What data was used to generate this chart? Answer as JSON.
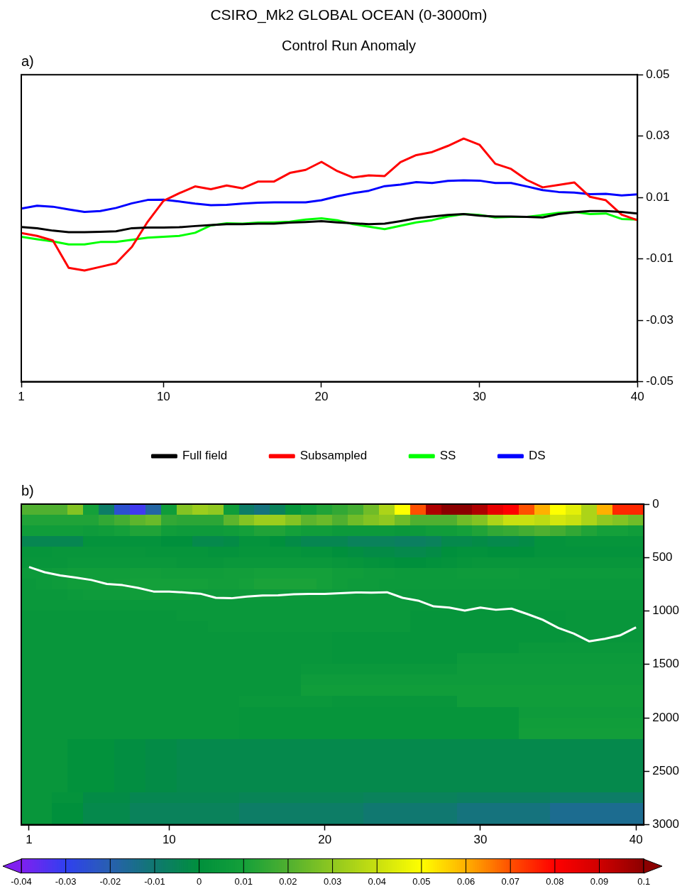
{
  "chart_data": [
    {
      "type": "line",
      "title": "CSIRO_Mk2 GLOBAL OCEAN (0-3000m)",
      "subtitle": "Control Run Anomaly",
      "annotations": [
        "a)"
      ],
      "x": [
        1,
        2,
        3,
        4,
        5,
        6,
        7,
        8,
        9,
        10,
        11,
        12,
        13,
        14,
        15,
        16,
        17,
        18,
        19,
        20,
        21,
        22,
        23,
        24,
        25,
        26,
        27,
        28,
        29,
        30,
        31,
        32,
        33,
        34,
        35,
        36,
        37,
        38,
        39,
        40
      ],
      "xlim": [
        1,
        40
      ],
      "xticks": [
        1,
        10,
        20,
        30,
        40
      ],
      "ylim": [
        -0.05,
        0.05
      ],
      "yticks": [
        -0.05,
        -0.03,
        -0.01,
        0.01,
        0.03,
        0.05
      ],
      "legend": "bottom",
      "series": [
        {
          "name": "Full field",
          "color": "#000000",
          "values": [
            0.0004,
            0.0,
            -0.0008,
            -0.0013,
            -0.0013,
            -0.0012,
            -0.001,
            0.0,
            0.0002,
            0.0002,
            0.0003,
            0.0007,
            0.001,
            0.0013,
            0.0013,
            0.0015,
            0.0015,
            0.0018,
            0.002,
            0.0023,
            0.0019,
            0.0016,
            0.0013,
            0.0015,
            0.0023,
            0.0032,
            0.0038,
            0.0043,
            0.0046,
            0.0041,
            0.0038,
            0.0038,
            0.0037,
            0.0035,
            0.0046,
            0.0052,
            0.0056,
            0.0056,
            0.0053,
            0.0048
          ]
        },
        {
          "name": "Subsampled",
          "color": "#ff0000",
          "values": [
            -0.0016,
            -0.0025,
            -0.004,
            -0.0129,
            -0.0138,
            -0.0126,
            -0.0114,
            -0.0061,
            0.0021,
            0.0089,
            0.0114,
            0.0136,
            0.0127,
            0.0139,
            0.013,
            0.0152,
            0.0152,
            0.018,
            0.019,
            0.0216,
            0.0186,
            0.0165,
            0.0172,
            0.017,
            0.0215,
            0.0238,
            0.0248,
            0.0268,
            0.0292,
            0.0272,
            0.021,
            0.0193,
            0.0157,
            0.0133,
            0.0141,
            0.0149,
            0.0102,
            0.0091,
            0.0044,
            0.0026
          ]
        },
        {
          "name": "SS",
          "color": "#00ff00",
          "values": [
            -0.0028,
            -0.0036,
            -0.0043,
            -0.0053,
            -0.0053,
            -0.0045,
            -0.0045,
            -0.0038,
            -0.0031,
            -0.0028,
            -0.0025,
            -0.0015,
            0.0009,
            0.0016,
            0.0015,
            0.0018,
            0.0019,
            0.0021,
            0.0028,
            0.0032,
            0.0026,
            0.0013,
            0.0005,
            -0.0003,
            0.0008,
            0.0019,
            0.0026,
            0.0038,
            0.0046,
            0.0043,
            0.0035,
            0.0037,
            0.0037,
            0.0043,
            0.005,
            0.0053,
            0.0046,
            0.0048,
            0.003,
            0.0028
          ]
        },
        {
          "name": "DS",
          "color": "#0000ff",
          "values": [
            0.0064,
            0.0073,
            0.007,
            0.0061,
            0.0053,
            0.0056,
            0.0066,
            0.0081,
            0.0092,
            0.0093,
            0.0087,
            0.008,
            0.0075,
            0.0076,
            0.008,
            0.0083,
            0.0084,
            0.0084,
            0.0084,
            0.0091,
            0.0104,
            0.0114,
            0.0122,
            0.0137,
            0.0142,
            0.015,
            0.0147,
            0.0154,
            0.0156,
            0.0155,
            0.0147,
            0.0147,
            0.0136,
            0.0124,
            0.0118,
            0.0116,
            0.0111,
            0.0112,
            0.0107,
            0.011
          ]
        }
      ]
    },
    {
      "type": "heatmap",
      "annotations": [
        "b)"
      ],
      "categories": [
        "1",
        null,
        null,
        null,
        null,
        null,
        null,
        null,
        null,
        "10",
        null,
        null,
        null,
        null,
        null,
        null,
        null,
        null,
        null,
        "20",
        null,
        null,
        null,
        null,
        null,
        null,
        null,
        null,
        null,
        "30",
        null,
        null,
        null,
        null,
        null,
        null,
        null,
        null,
        null,
        "40"
      ],
      "ylim": [
        3000,
        0
      ],
      "yticks": [
        0,
        500,
        1000,
        1500,
        2000,
        2500,
        3000
      ],
      "clim": [
        -0.04,
        0.1
      ],
      "cticks": [
        -0.04,
        -0.03,
        -0.02,
        -0.01,
        0,
        0.01,
        0.02,
        0.03,
        0.04,
        0.05,
        0.06,
        0.07,
        0.08,
        0.09,
        0.1
      ],
      "cells": [
        [
          0.02,
          0.02,
          0.02,
          0.028,
          0.01,
          -0.008,
          -0.025,
          -0.032,
          -0.018,
          0.008,
          0.028,
          0.032,
          0.03,
          0.008,
          -0.008,
          -0.012,
          -0.006,
          0.003,
          0.008,
          0.012,
          0.015,
          0.018,
          0.025,
          0.035,
          0.05,
          0.07,
          0.095,
          0.1,
          0.1,
          0.095,
          0.085,
          0.08,
          0.07,
          0.06,
          0.05,
          0.045,
          0.035,
          0.06,
          0.075,
          0.075
        ],
        [
          0.012,
          0.012,
          0.012,
          0.012,
          0.012,
          0.015,
          0.018,
          0.022,
          0.024,
          0.015,
          0.014,
          0.014,
          0.014,
          0.022,
          0.028,
          0.032,
          0.032,
          0.028,
          0.022,
          0.024,
          0.02,
          0.025,
          0.028,
          0.03,
          0.025,
          0.02,
          0.02,
          0.02,
          0.025,
          0.028,
          0.035,
          0.04,
          0.04,
          0.038,
          0.042,
          0.04,
          0.035,
          0.03,
          0.028,
          0.025
        ],
        [
          0.008,
          0.008,
          0.008,
          0.008,
          0.007,
          0.008,
          0.01,
          0.012,
          0.012,
          0.008,
          0.007,
          0.007,
          0.007,
          0.008,
          0.01,
          0.012,
          0.012,
          0.01,
          0.008,
          0.008,
          0.006,
          0.006,
          0.006,
          0.006,
          0.005,
          0.006,
          0.008,
          0.008,
          0.01,
          0.012,
          0.015,
          0.016,
          0.018,
          0.02,
          0.018,
          0.015,
          0.012,
          0.01,
          0.01,
          0.008
        ],
        [
          -0.004,
          -0.004,
          -0.004,
          -0.004,
          0.002,
          0.002,
          0.002,
          0.002,
          0.002,
          0,
          0,
          -0.003,
          -0.003,
          -0.002,
          0.002,
          0.002,
          0,
          -0.002,
          -0.004,
          -0.004,
          -0.004,
          -0.006,
          -0.006,
          -0.006,
          -0.007,
          -0.007,
          -0.006,
          -0.003,
          -0.003,
          -0.002,
          -0.003,
          -0.003,
          -0.002,
          0.002,
          0.002,
          0.003,
          0.003,
          0.003,
          0.003,
          0.003
        ],
        [
          0.003,
          0.003,
          0.004,
          0.004,
          0.004,
          0.004,
          0.004,
          0.004,
          0.003,
          0.003,
          0.003,
          0.003,
          0.002,
          0.002,
          0.003,
          0.003,
          0.003,
          0.003,
          0.002,
          0.002,
          0,
          -0.001,
          -0.002,
          -0.002,
          -0.003,
          -0.003,
          -0.002,
          0,
          0.001,
          0.001,
          0,
          0,
          0,
          0.002,
          0.002,
          0.002,
          0.002,
          0.002,
          0.002,
          0.002
        ],
        [
          0.004,
          0.004,
          0.004,
          0.005,
          0.005,
          0.005,
          0.005,
          0.005,
          0.005,
          0.005,
          0.004,
          0.004,
          0.004,
          0.005,
          0.005,
          0.005,
          0.005,
          0.005,
          0.005,
          0.005,
          0.004,
          0.003,
          0.002,
          0.001,
          0,
          0,
          0.001,
          0.002,
          0.003,
          0.004,
          0.004,
          0.004,
          0.004,
          0.004,
          0.004,
          0.004,
          0.004,
          0.004,
          0.004,
          0.004
        ],
        [
          0.006,
          0.006,
          0.007,
          0.008,
          0.008,
          0.008,
          0.008,
          0.009,
          0.009,
          0.008,
          0.008,
          0.008,
          0.008,
          0.009,
          0.009,
          0.01,
          0.01,
          0.01,
          0.01,
          0.01,
          0.008,
          0.008,
          0.007,
          0.007,
          0.006,
          0.006,
          0.006,
          0.006,
          0.007,
          0.007,
          0.007,
          0.007,
          0.006,
          0.006,
          0.006,
          0.006,
          0.006,
          0.006,
          0.006,
          0.006
        ],
        [
          0.005,
          0.006,
          0.007,
          0.008,
          0.008,
          0.008,
          0.009,
          0.01,
          0.01,
          0.01,
          0.01,
          0.01,
          0.009,
          0.009,
          0.01,
          0.011,
          0.011,
          0.011,
          0.011,
          0.01,
          0.008,
          0.007,
          0.007,
          0.006,
          0.006,
          0.006,
          0.006,
          0.006,
          0.006,
          0.006,
          0.006,
          0.006,
          0.006,
          0.006,
          0.005,
          0.005,
          0.005,
          0.005,
          0.005,
          0.005
        ],
        [
          0.005,
          0.005,
          0.005,
          0.006,
          0.007,
          0.007,
          0.007,
          0.008,
          0.008,
          0.008,
          0.008,
          0.007,
          0.007,
          0.007,
          0.007,
          0.007,
          0.007,
          0.007,
          0.007,
          0.007,
          0.006,
          0.006,
          0.006,
          0.006,
          0.005,
          0.005,
          0.005,
          0.005,
          0.005,
          0.005,
          0.005,
          0.005,
          0.005,
          0.005,
          0.005,
          0.005,
          0.005,
          0.005,
          0.005,
          0.005
        ],
        [
          0.005,
          0.005,
          0.005,
          0.005,
          0.005,
          0.005,
          0.005,
          0.005,
          0.005,
          0.005,
          0.005,
          0.005,
          0.005,
          0.005,
          0.005,
          0.005,
          0.005,
          0.005,
          0.005,
          0.005,
          0.005,
          0.005,
          0.005,
          0.005,
          0.005,
          0.004,
          0.004,
          0.004,
          0.004,
          0.004,
          0.004,
          0.004,
          0.004,
          0.004,
          0.004,
          0.004,
          0.004,
          0.004,
          0.004,
          0.004
        ],
        [
          0.004,
          0.004,
          0.004,
          0.004,
          0.004,
          0.004,
          0.004,
          0.004,
          0.004,
          0.004,
          0.005,
          0.005,
          0.005,
          0.005,
          0.005,
          0.005,
          0.005,
          0.005,
          0.005,
          0.005,
          0.005,
          0.005,
          0.005,
          0.005,
          0.005,
          0.003,
          0.003,
          0.003,
          0.003,
          0.003,
          0.003,
          0.003,
          0.003,
          0.003,
          0.003,
          0.004,
          0.004,
          0.004,
          0.004,
          0.004
        ],
        [
          0.004,
          0.004,
          0.004,
          0.004,
          0.004,
          0.004,
          0.004,
          0.004,
          0.004,
          0.004,
          0.004,
          0.004,
          0.005,
          0.005,
          0.005,
          0.005,
          0.005,
          0.005,
          0.005,
          0.005,
          0.005,
          0.005,
          0.005,
          0.005,
          0.005,
          0.003,
          0.003,
          0.003,
          0.003,
          0.003,
          0.003,
          0.003,
          0.003,
          0.003,
          0.003,
          0.004,
          0.004,
          0.004,
          0.004,
          0.004
        ],
        [
          0.004,
          0.004,
          0.004,
          0.004,
          0.004,
          0.004,
          0.004,
          0.004,
          0.004,
          0.004,
          0.004,
          0.004,
          0.004,
          0.004,
          0.004,
          0.004,
          0.004,
          0.004,
          0.004,
          0.004,
          0.003,
          0.003,
          0.003,
          0.003,
          0.003,
          0.003,
          0.003,
          0.003,
          0.003,
          0.003,
          0.003,
          0.003,
          0.003,
          0.003,
          0.003,
          0.004,
          0.004,
          0.004,
          0.004,
          0.004
        ],
        [
          0.004,
          0.004,
          0.004,
          0.004,
          0.004,
          0.004,
          0.004,
          0.004,
          0.004,
          0.004,
          0.004,
          0.004,
          0.004,
          0.004,
          0.004,
          0.004,
          0.004,
          0.004,
          0.004,
          0.004,
          0.003,
          0.003,
          0.003,
          0.003,
          0.003,
          0.003,
          0.003,
          0.003,
          0.003,
          0.003,
          0.003,
          0.003,
          0.005,
          0.005,
          0.005,
          0.005,
          0.005,
          0.005,
          0.005,
          0.005
        ],
        [
          0.004,
          0.004,
          0.004,
          0.004,
          0.004,
          0.004,
          0.004,
          0.004,
          0.004,
          0.004,
          0.004,
          0.004,
          0.004,
          0.004,
          0.004,
          0.004,
          0.004,
          0.004,
          0.004,
          0.004,
          0.003,
          0.003,
          0.003,
          0.003,
          0.003,
          0.003,
          0.003,
          0.003,
          0.006,
          0.006,
          0.006,
          0.006,
          0.006,
          0.006,
          0.006,
          0.006,
          0.006,
          0.006,
          0.006,
          0.006
        ],
        [
          0.004,
          0.004,
          0.004,
          0.004,
          0.004,
          0.004,
          0.004,
          0.004,
          0.004,
          0.004,
          0.004,
          0.004,
          0.004,
          0.004,
          0.004,
          0.004,
          0.004,
          0.004,
          0.005,
          0.005,
          0.005,
          0.005,
          0.005,
          0.005,
          0.005,
          0.005,
          0.005,
          0.005,
          0.007,
          0.007,
          0.007,
          0.007,
          0.007,
          0.007,
          0.007,
          0.007,
          0.007,
          0.007,
          0.007,
          0.007
        ],
        [
          0.004,
          0.004,
          0.004,
          0.004,
          0.004,
          0.004,
          0.004,
          0.004,
          0.004,
          0.004,
          0.004,
          0.004,
          0.004,
          0.004,
          0.004,
          0.004,
          0.004,
          0.004,
          0.007,
          0.007,
          0.007,
          0.007,
          0.007,
          0.007,
          0.007,
          0.007,
          0.007,
          0.007,
          0.007,
          0.007,
          0.007,
          0.007,
          0.007,
          0.007,
          0.007,
          0.007,
          0.007,
          0.007,
          0.007,
          0.007
        ],
        [
          0.004,
          0.004,
          0.004,
          0.004,
          0.004,
          0.004,
          0.004,
          0.004,
          0.004,
          0.004,
          0.004,
          0.004,
          0.004,
          0.004,
          0.004,
          0.004,
          0.004,
          0.004,
          0.008,
          0.008,
          0.008,
          0.008,
          0.008,
          0.008,
          0.008,
          0.008,
          0.008,
          0.008,
          0.008,
          0.008,
          0.008,
          0.008,
          0.008,
          0.008,
          0.008,
          0.008,
          0.008,
          0.008,
          0.008,
          0.008
        ],
        [
          0.004,
          0.004,
          0.004,
          0.004,
          0.004,
          0.004,
          0.004,
          0.004,
          0.004,
          0.004,
          0.004,
          0.004,
          0.004,
          0.004,
          0.005,
          0.005,
          0.005,
          0.005,
          0.005,
          0.005,
          0.004,
          0.004,
          0.004,
          0.004,
          0.004,
          0.004,
          0.004,
          0.004,
          0.008,
          0.008,
          0.008,
          0.008,
          0.008,
          0.008,
          0.008,
          0.008,
          0.008,
          0.008,
          0.008,
          0.008
        ],
        [
          0.004,
          0.004,
          0.004,
          0.004,
          0.004,
          0.004,
          0.004,
          0.004,
          0.004,
          0.004,
          0.004,
          0.004,
          0.004,
          0.004,
          0.003,
          0.003,
          0.003,
          0.003,
          0.003,
          0.003,
          0.003,
          0.003,
          0.003,
          0.003,
          0.003,
          0.003,
          0.003,
          0.003,
          0.003,
          0.003,
          0.003,
          0.003,
          0.007,
          0.007,
          0.007,
          0.007,
          0.007,
          0.007,
          0.007,
          0.007
        ],
        [
          0.004,
          0.004,
          0.004,
          0.004,
          0.004,
          0.004,
          0.004,
          0.004,
          0.004,
          0.004,
          0.004,
          0.004,
          0.004,
          0.004,
          0.003,
          0.003,
          0.003,
          0.003,
          0.003,
          0.003,
          0.003,
          0.003,
          0.003,
          0.003,
          0.003,
          0.003,
          0.003,
          0.003,
          0.003,
          0.003,
          0.003,
          0.003,
          0.008,
          0.008,
          0.008,
          0.008,
          0.008,
          0.008,
          0.008,
          0.008
        ],
        [
          0.004,
          0.004,
          0.004,
          0.004,
          0.004,
          0.004,
          0.004,
          0.004,
          0.004,
          0.004,
          0.004,
          0.004,
          0.004,
          0.004,
          0.003,
          0.003,
          0.003,
          0.003,
          0.003,
          0.003,
          0.003,
          0.003,
          0.003,
          0.003,
          0.003,
          0.003,
          0.003,
          0.003,
          0.003,
          0.003,
          0.003,
          0.003,
          0.009,
          0.009,
          0.009,
          0.009,
          0.009,
          0.009,
          0.009,
          0.009
        ],
        [
          0.004,
          0.004,
          0.004,
          0.001,
          0.001,
          0.001,
          -0.001,
          -0.001,
          -0.002,
          -0.002,
          -0.003,
          -0.003,
          -0.003,
          -0.003,
          -0.003,
          -0.003,
          -0.003,
          -0.003,
          -0.003,
          -0.003,
          -0.003,
          -0.003,
          -0.003,
          -0.003,
          -0.003,
          -0.003,
          -0.003,
          -0.003,
          -0.003,
          -0.003,
          -0.003,
          -0.003,
          -0.003,
          -0.003,
          -0.003,
          -0.003,
          -0.003,
          -0.003,
          -0.003,
          -0.003
        ],
        [
          0.004,
          0.004,
          0.004,
          0.001,
          0.001,
          0.001,
          -0.001,
          -0.001,
          -0.002,
          -0.002,
          -0.003,
          -0.003,
          -0.003,
          -0.003,
          -0.003,
          -0.003,
          -0.003,
          -0.003,
          -0.003,
          -0.003,
          -0.003,
          -0.003,
          -0.003,
          -0.003,
          -0.003,
          -0.003,
          -0.003,
          -0.003,
          -0.003,
          -0.003,
          -0.003,
          -0.003,
          -0.003,
          -0.003,
          -0.003,
          -0.003,
          -0.003,
          -0.003,
          -0.003,
          -0.003
        ],
        [
          0.004,
          0.004,
          0.004,
          0.001,
          0.001,
          0.001,
          -0.001,
          -0.001,
          -0.002,
          -0.002,
          -0.003,
          -0.003,
          -0.003,
          -0.003,
          -0.003,
          -0.003,
          -0.003,
          -0.003,
          -0.003,
          -0.003,
          -0.003,
          -0.003,
          -0.003,
          -0.003,
          -0.003,
          -0.003,
          -0.003,
          -0.003,
          -0.003,
          -0.003,
          -0.003,
          -0.003,
          -0.003,
          -0.003,
          -0.003,
          -0.003,
          -0.003,
          -0.003,
          -0.003,
          -0.003
        ],
        [
          0.004,
          0.004,
          0.004,
          0.001,
          0.001,
          0.001,
          -0.001,
          -0.001,
          -0.002,
          -0.002,
          -0.003,
          -0.003,
          -0.003,
          -0.003,
          -0.003,
          -0.003,
          -0.003,
          -0.003,
          -0.003,
          -0.003,
          -0.003,
          -0.003,
          -0.003,
          -0.003,
          -0.003,
          -0.003,
          -0.003,
          -0.003,
          -0.003,
          -0.003,
          -0.003,
          -0.003,
          -0.003,
          -0.003,
          -0.003,
          -0.003,
          -0.003,
          -0.003,
          -0.003,
          -0.003
        ],
        [
          0.004,
          0.004,
          0.004,
          0.001,
          0.001,
          0.001,
          -0.001,
          -0.001,
          -0.002,
          -0.002,
          -0.003,
          -0.003,
          -0.003,
          -0.003,
          -0.003,
          -0.003,
          -0.003,
          -0.003,
          -0.003,
          -0.003,
          -0.003,
          -0.003,
          -0.003,
          -0.003,
          -0.003,
          -0.003,
          -0.003,
          -0.003,
          -0.003,
          -0.003,
          -0.003,
          -0.003,
          -0.003,
          -0.003,
          -0.003,
          -0.003,
          -0.003,
          -0.003,
          -0.003,
          -0.003
        ],
        [
          0.004,
          0.004,
          0.002,
          0.002,
          -0.002,
          -0.002,
          -0.002,
          -0.004,
          -0.004,
          -0.004,
          -0.004,
          -0.004,
          -0.004,
          -0.004,
          -0.005,
          -0.005,
          -0.005,
          -0.005,
          -0.005,
          -0.005,
          -0.005,
          -0.005,
          -0.006,
          -0.006,
          -0.006,
          -0.006,
          -0.006,
          -0.006,
          -0.007,
          -0.007,
          -0.007,
          -0.007,
          -0.007,
          -0.007,
          -0.008,
          -0.008,
          -0.008,
          -0.008,
          -0.008,
          -0.008
        ],
        [
          0.004,
          0.004,
          0,
          0,
          -0.003,
          -0.003,
          -0.003,
          -0.006,
          -0.006,
          -0.006,
          -0.006,
          -0.006,
          -0.006,
          -0.006,
          -0.008,
          -0.008,
          -0.008,
          -0.008,
          -0.008,
          -0.008,
          -0.008,
          -0.008,
          -0.01,
          -0.01,
          -0.01,
          -0.01,
          -0.01,
          -0.01,
          -0.012,
          -0.012,
          -0.012,
          -0.012,
          -0.012,
          -0.012,
          -0.015,
          -0.015,
          -0.015,
          -0.015,
          -0.015,
          -0.015
        ],
        [
          0.004,
          0.004,
          0,
          0,
          -0.003,
          -0.003,
          -0.003,
          -0.006,
          -0.006,
          -0.006,
          -0.006,
          -0.006,
          -0.006,
          -0.006,
          -0.008,
          -0.008,
          -0.008,
          -0.008,
          -0.008,
          -0.008,
          -0.008,
          -0.008,
          -0.01,
          -0.01,
          -0.01,
          -0.01,
          -0.01,
          -0.01,
          -0.012,
          -0.012,
          -0.012,
          -0.012,
          -0.012,
          -0.012,
          -0.015,
          -0.015,
          -0.015,
          -0.015,
          -0.015,
          -0.015
        ]
      ],
      "series": [
        {
          "type": "line",
          "color": "#ffffff",
          "values": [
            589,
            638,
            667,
            688,
            710,
            747,
            758,
            784,
            818,
            818,
            827,
            838,
            877,
            881,
            866,
            855,
            853,
            844,
            840,
            840,
            833,
            827,
            829,
            825,
            877,
            903,
            957,
            968,
            996,
            968,
            989,
            978,
            1028,
            1082,
            1158,
            1212,
            1284,
            1260,
            1227,
            1154
          ]
        }
      ]
    }
  ]
}
